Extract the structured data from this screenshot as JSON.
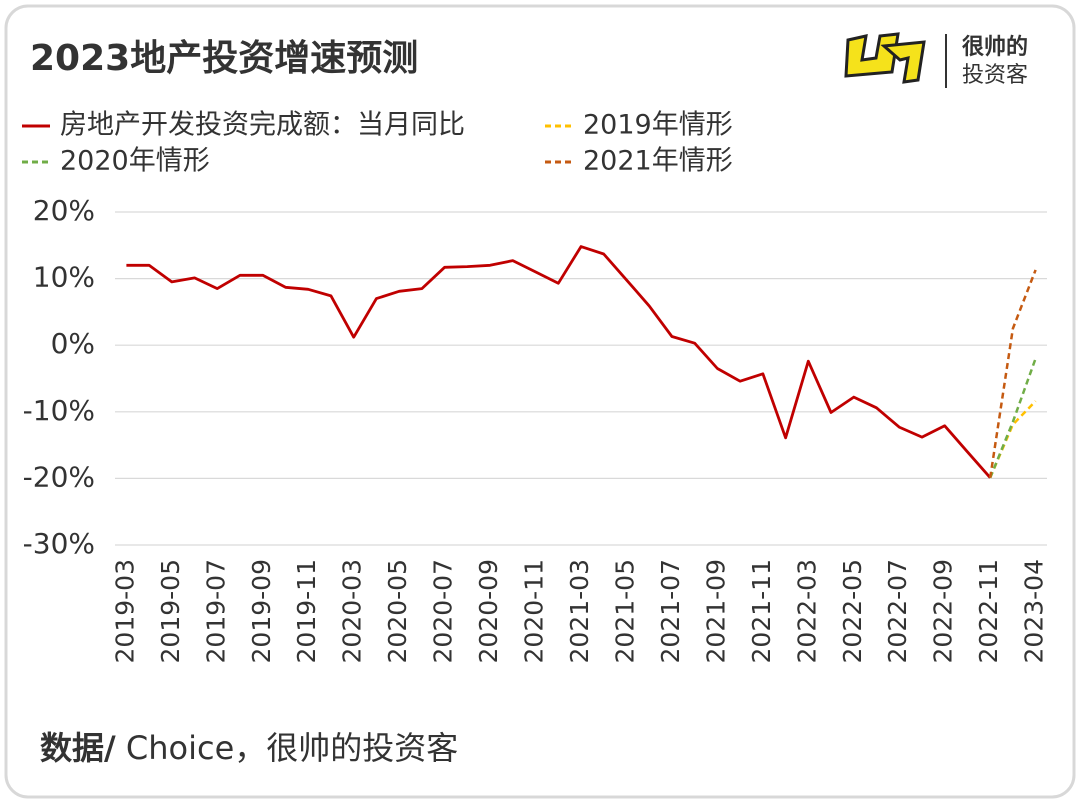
{
  "chart_data": {
    "type": "line",
    "title": "2023地产投资增速预测",
    "brand": [
      "很帅的",
      "投资客"
    ],
    "source_label": "数据/",
    "source": " Choice，很帅的投资客",
    "categories": [
      "2019-03",
      null,
      "2019-05",
      null,
      "2019-07",
      null,
      "2019-09",
      null,
      "2019-11",
      null,
      "2020-03",
      null,
      "2020-05",
      null,
      "2020-07",
      null,
      "2020-09",
      null,
      "2020-11",
      null,
      "2021-03",
      null,
      "2021-05",
      null,
      "2021-07",
      null,
      "2021-09",
      null,
      "2021-11",
      null,
      "2022-03",
      null,
      "2022-05",
      null,
      "2022-07",
      null,
      "2022-09",
      null,
      "2022-11",
      null,
      "2023-04"
    ],
    "series": [
      {
        "name": "房地产开发投资完成额：当月同比",
        "color": "#c00000",
        "dash": false,
        "values": [
          12.0,
          12.0,
          9.5,
          10.1,
          8.5,
          10.5,
          10.5,
          8.7,
          8.4,
          7.4,
          1.2,
          7.0,
          8.1,
          8.5,
          11.7,
          11.8,
          12.0,
          12.7,
          11.0,
          9.3,
          14.8,
          13.7,
          9.8,
          5.9,
          1.3,
          0.3,
          -3.5,
          -5.4,
          -4.3,
          -13.9,
          -2.4,
          -10.1,
          -7.8,
          -9.4,
          -12.3,
          -13.8,
          -12.1,
          -16.0,
          -19.9,
          null,
          null
        ]
      },
      {
        "name": "2019年情形",
        "color": "#ffc000",
        "dash": true,
        "values": [
          null,
          null,
          null,
          null,
          null,
          null,
          null,
          null,
          null,
          null,
          null,
          null,
          null,
          null,
          null,
          null,
          null,
          null,
          null,
          null,
          null,
          null,
          null,
          null,
          null,
          null,
          null,
          null,
          null,
          null,
          null,
          null,
          null,
          null,
          null,
          null,
          null,
          null,
          -19.9,
          -11.9,
          -8.4
        ]
      },
      {
        "name": "2020年情形",
        "color": "#70ad47",
        "dash": true,
        "values": [
          null,
          null,
          null,
          null,
          null,
          null,
          null,
          null,
          null,
          null,
          null,
          null,
          null,
          null,
          null,
          null,
          null,
          null,
          null,
          null,
          null,
          null,
          null,
          null,
          null,
          null,
          null,
          null,
          null,
          null,
          null,
          null,
          null,
          null,
          null,
          null,
          null,
          null,
          -19.9,
          -11.5,
          -2.0
        ]
      },
      {
        "name": "2021年情形",
        "color": "#c55a11",
        "dash": true,
        "values": [
          null,
          null,
          null,
          null,
          null,
          null,
          null,
          null,
          null,
          null,
          null,
          null,
          null,
          null,
          null,
          null,
          null,
          null,
          null,
          null,
          null,
          null,
          null,
          null,
          null,
          null,
          null,
          null,
          null,
          null,
          null,
          null,
          null,
          null,
          null,
          null,
          null,
          null,
          -19.9,
          2.5,
          11.3
        ]
      }
    ],
    "ylim": [
      -30,
      20
    ],
    "yticks": [
      {
        "value": 20,
        "label": "20%"
      },
      {
        "value": 10,
        "label": "10%"
      },
      {
        "value": 0,
        "label": "0%"
      },
      {
        "value": -10,
        "label": "-10%"
      },
      {
        "value": -20,
        "label": "-20%"
      },
      {
        "value": -30,
        "label": "-30%"
      }
    ],
    "grid": true
  }
}
